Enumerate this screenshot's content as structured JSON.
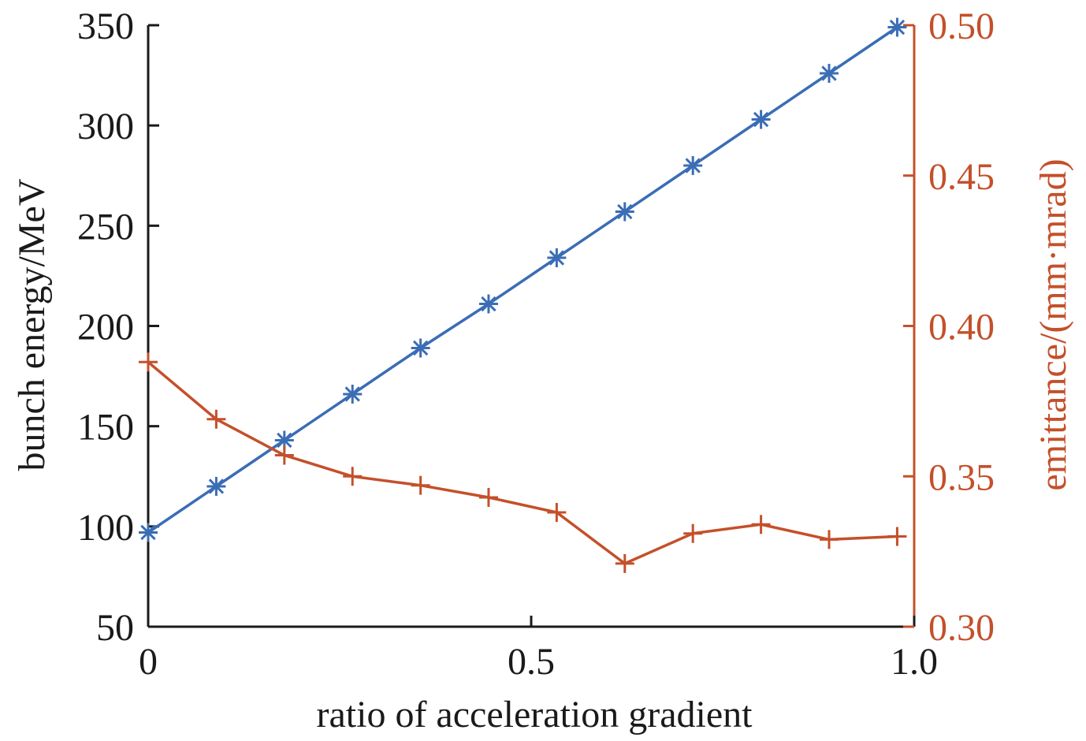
{
  "chart_data": {
    "type": "line",
    "xlabel": "ratio of acceleration gradient",
    "ylabel_left": "bunch energy/MeV",
    "ylabel_right": "emittance/(mm·mrad)",
    "xlim": [
      0,
      1.0
    ],
    "ylim_left": [
      50,
      350
    ],
    "ylim_right": [
      0.3,
      0.5
    ],
    "x_ticks": [
      "0",
      "0.5",
      "1.0"
    ],
    "x_tick_values": [
      0,
      0.5,
      1.0
    ],
    "y_left_ticks": [
      "50",
      "100",
      "150",
      "200",
      "250",
      "300",
      "350"
    ],
    "y_left_tick_values": [
      50,
      100,
      150,
      200,
      250,
      300,
      350
    ],
    "y_right_ticks": [
      "0.30",
      "0.35",
      "0.40",
      "0.45",
      "0.50"
    ],
    "y_right_tick_values": [
      0.3,
      0.35,
      0.4,
      0.45,
      0.5
    ],
    "grid": false,
    "series": [
      {
        "axis": "left",
        "color": "#3a6db5",
        "marker": "asterisk",
        "x": [
          0,
          0.0889,
          0.1778,
          0.2667,
          0.3556,
          0.4444,
          0.5333,
          0.6222,
          0.7111,
          0.8,
          0.8889,
          0.9778
        ],
        "values": [
          97,
          120,
          143,
          166,
          189,
          211,
          234,
          257,
          280,
          303,
          326,
          349
        ]
      },
      {
        "axis": "right",
        "color": "#c4502a",
        "marker": "plus",
        "x": [
          0,
          0.0889,
          0.1778,
          0.2667,
          0.3556,
          0.4444,
          0.5333,
          0.6222,
          0.7111,
          0.8,
          0.8889,
          0.9778
        ],
        "values": [
          0.388,
          0.369,
          0.357,
          0.35,
          0.347,
          0.343,
          0.338,
          0.321,
          0.331,
          0.334,
          0.329,
          0.33
        ]
      }
    ]
  }
}
